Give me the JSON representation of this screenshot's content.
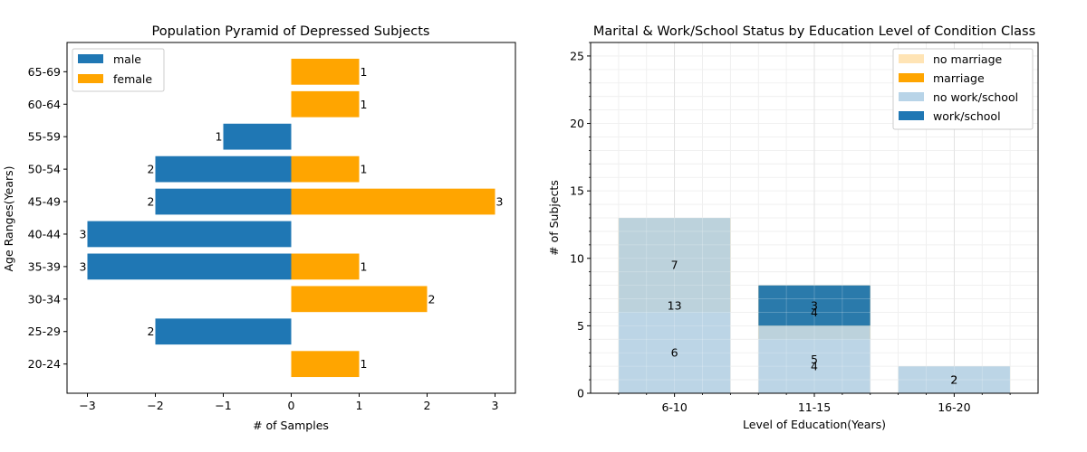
{
  "chart_data": [
    {
      "type": "bar",
      "orientation": "horizontal",
      "title": "Population Pyramid of Depressed Subjects",
      "xlabel": "# of Samples",
      "ylabel": "Age Ranges(Years)",
      "categories": [
        "20-24",
        "25-29",
        "30-34",
        "35-39",
        "40-44",
        "45-49",
        "50-54",
        "55-59",
        "60-64",
        "65-69"
      ],
      "xlim": [
        -3.3,
        3.3
      ],
      "xticks": [
        -3,
        -2,
        -1,
        0,
        1,
        2,
        3
      ],
      "xtick_labels": [
        "−3",
        "−2",
        "−1",
        "0",
        "1",
        "2",
        "3"
      ],
      "series": [
        {
          "name": "male",
          "color": "#1f77b4",
          "values": [
            0,
            -2,
            0,
            -3,
            -3,
            -2,
            -2,
            -1,
            0,
            0
          ]
        },
        {
          "name": "female",
          "color": "#ffa500",
          "values": [
            1,
            0,
            2,
            1,
            0,
            3,
            1,
            0,
            1,
            1
          ]
        }
      ],
      "data_labels": {
        "male": [
          "",
          "2",
          "",
          "3",
          "3",
          "2",
          "2",
          "1",
          "",
          ""
        ],
        "female": [
          "1",
          "",
          "2",
          "1",
          "",
          "3",
          "1",
          "",
          "1",
          "1"
        ]
      },
      "legend": {
        "position": "top-left",
        "entries": [
          "male",
          "female"
        ]
      },
      "grid": false
    },
    {
      "type": "bar",
      "stacked": true,
      "title": "Marital & Work/School Status by Education Level of Condition Class",
      "xlabel": "Level of Education(Years)",
      "ylabel": "# of Subjects",
      "categories": [
        "6-10",
        "11-15",
        "16-20"
      ],
      "ylim": [
        0,
        26
      ],
      "yticks": [
        0,
        5,
        10,
        15,
        20,
        25
      ],
      "ytick_labels": [
        "0",
        "5",
        "10",
        "15",
        "20",
        "25"
      ],
      "series": [
        {
          "name": "no marriage",
          "color": "#ffe4b5",
          "values": [
            6,
            4,
            2
          ]
        },
        {
          "name": "marriage",
          "color": "#ffa500",
          "values": [
            7,
            4,
            0
          ]
        },
        {
          "name": "no work/school",
          "color": "#b8d4e8",
          "values": [
            13,
            5,
            2
          ]
        },
        {
          "name": "work/school",
          "color": "#1f77b4",
          "values": [
            0,
            3,
            0
          ]
        }
      ],
      "stack_groups": [
        [
          "no marriage",
          "marriage"
        ],
        [
          "no work/school",
          "work/school"
        ]
      ],
      "data_labels": [
        {
          "category": "6-10",
          "series": "no marriage",
          "value": "6"
        },
        {
          "category": "6-10",
          "series": "marriage",
          "value": "7"
        },
        {
          "category": "6-10",
          "series": "no work/school",
          "value": "13"
        },
        {
          "category": "11-15",
          "series": "no marriage",
          "value": "4"
        },
        {
          "category": "11-15",
          "series": "marriage",
          "value": "4"
        },
        {
          "category": "11-15",
          "series": "no work/school",
          "value": "5"
        },
        {
          "category": "11-15",
          "series": "work/school",
          "value": "3"
        },
        {
          "category": "16-20",
          "series": "no marriage",
          "value": "2"
        },
        {
          "category": "16-20",
          "series": "no work/school",
          "value": "2"
        }
      ],
      "legend": {
        "position": "top-right",
        "entries": [
          "no marriage",
          "marriage",
          "no work/school",
          "work/school"
        ]
      },
      "grid": true
    }
  ]
}
